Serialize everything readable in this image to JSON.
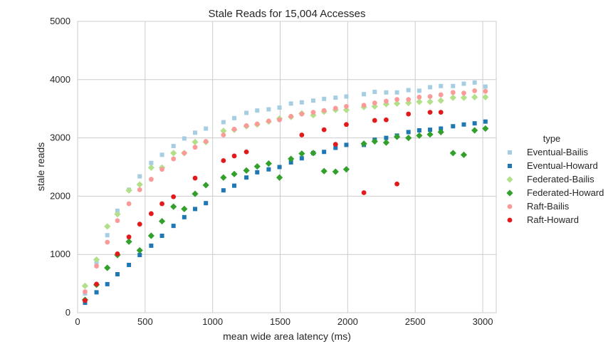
{
  "chart_data": {
    "type": "scatter",
    "title": "Stale Reads for 15,004 Accesses",
    "xlabel": "mean wide area latency (ms)",
    "ylabel": "stale reads",
    "xlim": [
      0,
      3100
    ],
    "ylim": [
      0,
      5000
    ],
    "x_ticks": [
      0,
      500,
      1000,
      1500,
      2000,
      2500,
      3000
    ],
    "y_ticks": [
      0,
      1000,
      2000,
      3000,
      4000,
      5000
    ],
    "grid": true,
    "legend_title": "type",
    "legend_placement": "right, outside plot",
    "series": [
      {
        "name": "Eventual-Bailis",
        "color": "#a6cee3",
        "marker": "square",
        "points": [
          [
            55,
            330
          ],
          [
            140,
            860
          ],
          [
            220,
            1330
          ],
          [
            295,
            1750
          ],
          [
            380,
            2110
          ],
          [
            460,
            2340
          ],
          [
            545,
            2570
          ],
          [
            625,
            2710
          ],
          [
            710,
            2860
          ],
          [
            790,
            2990
          ],
          [
            870,
            3090
          ],
          [
            950,
            3160
          ],
          [
            1080,
            3270
          ],
          [
            1160,
            3340
          ],
          [
            1250,
            3430
          ],
          [
            1330,
            3470
          ],
          [
            1415,
            3490
          ],
          [
            1495,
            3520
          ],
          [
            1580,
            3590
          ],
          [
            1660,
            3610
          ],
          [
            1745,
            3640
          ],
          [
            1825,
            3670
          ],
          [
            1910,
            3690
          ],
          [
            1990,
            3710
          ],
          [
            2120,
            3750
          ],
          [
            2200,
            3790
          ],
          [
            2285,
            3780
          ],
          [
            2365,
            3780
          ],
          [
            2450,
            3820
          ],
          [
            2530,
            3810
          ],
          [
            2610,
            3870
          ],
          [
            2690,
            3890
          ],
          [
            2780,
            3890
          ],
          [
            2860,
            3930
          ],
          [
            2940,
            3950
          ],
          [
            3020,
            3880
          ]
        ]
      },
      {
        "name": "Eventual-Howard",
        "color": "#1f78b4",
        "marker": "square",
        "points": [
          [
            55,
            170
          ],
          [
            140,
            350
          ],
          [
            220,
            490
          ],
          [
            295,
            660
          ],
          [
            380,
            820
          ],
          [
            460,
            990
          ],
          [
            545,
            1150
          ],
          [
            625,
            1320
          ],
          [
            710,
            1490
          ],
          [
            790,
            1640
          ],
          [
            870,
            1780
          ],
          [
            950,
            1880
          ],
          [
            1080,
            2100
          ],
          [
            1160,
            2180
          ],
          [
            1250,
            2320
          ],
          [
            1330,
            2410
          ],
          [
            1415,
            2460
          ],
          [
            1495,
            2500
          ],
          [
            1580,
            2580
          ],
          [
            1660,
            2650
          ],
          [
            1745,
            2740
          ],
          [
            1825,
            2760
          ],
          [
            1910,
            2830
          ],
          [
            1990,
            2880
          ],
          [
            2120,
            2880
          ],
          [
            2200,
            2970
          ],
          [
            2285,
            3000
          ],
          [
            2365,
            3040
          ],
          [
            2450,
            3100
          ],
          [
            2530,
            3130
          ],
          [
            2610,
            3140
          ],
          [
            2690,
            3160
          ],
          [
            2780,
            3200
          ],
          [
            2860,
            3230
          ],
          [
            2940,
            3250
          ],
          [
            3020,
            3280
          ]
        ]
      },
      {
        "name": "Federated-Bailis",
        "color": "#b2df8a",
        "marker": "diamond",
        "points": [
          [
            55,
            460
          ],
          [
            140,
            910
          ],
          [
            220,
            1480
          ],
          [
            295,
            1690
          ],
          [
            380,
            2100
          ],
          [
            460,
            2200
          ],
          [
            545,
            2490
          ],
          [
            625,
            2490
          ],
          [
            710,
            2740
          ],
          [
            790,
            2740
          ],
          [
            870,
            2930
          ],
          [
            950,
            2930
          ],
          [
            1080,
            3120
          ],
          [
            1160,
            3140
          ],
          [
            1250,
            3200
          ],
          [
            1330,
            3230
          ],
          [
            1415,
            3280
          ],
          [
            1495,
            3330
          ],
          [
            1580,
            3360
          ],
          [
            1660,
            3420
          ],
          [
            1745,
            3390
          ],
          [
            1825,
            3450
          ],
          [
            1910,
            3480
          ],
          [
            1990,
            3480
          ],
          [
            2120,
            3530
          ],
          [
            2200,
            3540
          ],
          [
            2285,
            3580
          ],
          [
            2365,
            3590
          ],
          [
            2450,
            3600
          ],
          [
            2530,
            3620
          ],
          [
            2610,
            3620
          ],
          [
            2690,
            3640
          ],
          [
            2780,
            3690
          ],
          [
            2860,
            3690
          ],
          [
            2940,
            3700
          ],
          [
            3020,
            3700
          ]
        ]
      },
      {
        "name": "Federated-Howard",
        "color": "#33a02c",
        "marker": "diamond",
        "points": [
          [
            55,
            220
          ],
          [
            140,
            480
          ],
          [
            220,
            770
          ],
          [
            295,
            990
          ],
          [
            380,
            1220
          ],
          [
            460,
            1070
          ],
          [
            545,
            1320
          ],
          [
            625,
            1570
          ],
          [
            710,
            1820
          ],
          [
            790,
            1780
          ],
          [
            870,
            2040
          ],
          [
            950,
            2190
          ],
          [
            1080,
            2320
          ],
          [
            1160,
            2380
          ],
          [
            1250,
            2440
          ],
          [
            1330,
            2510
          ],
          [
            1415,
            2560
          ],
          [
            1495,
            2320
          ],
          [
            1580,
            2640
          ],
          [
            1660,
            2730
          ],
          [
            1745,
            2740
          ],
          [
            1825,
            2430
          ],
          [
            1910,
            2420
          ],
          [
            1990,
            2460
          ],
          [
            2120,
            2900
          ],
          [
            2200,
            2940
          ],
          [
            2285,
            2920
          ],
          [
            2365,
            3020
          ],
          [
            2450,
            3000
          ],
          [
            2530,
            3040
          ],
          [
            2610,
            3060
          ],
          [
            2690,
            3100
          ],
          [
            2780,
            2740
          ],
          [
            2860,
            2710
          ],
          [
            2940,
            3130
          ],
          [
            3020,
            3160
          ]
        ]
      },
      {
        "name": "Raft-Bailis",
        "color": "#fb9a99",
        "marker": "circle",
        "points": [
          [
            55,
            360
          ],
          [
            140,
            800
          ],
          [
            220,
            1210
          ],
          [
            295,
            1580
          ],
          [
            380,
            1870
          ],
          [
            460,
            2110
          ],
          [
            545,
            2290
          ],
          [
            625,
            2460
          ],
          [
            710,
            2640
          ],
          [
            790,
            2740
          ],
          [
            870,
            2840
          ],
          [
            950,
            2940
          ],
          [
            1080,
            3050
          ],
          [
            1160,
            3150
          ],
          [
            1250,
            3210
          ],
          [
            1330,
            3240
          ],
          [
            1415,
            3290
          ],
          [
            1495,
            3310
          ],
          [
            1580,
            3370
          ],
          [
            1660,
            3410
          ],
          [
            1745,
            3440
          ],
          [
            1825,
            3470
          ],
          [
            1910,
            3510
          ],
          [
            1990,
            3540
          ],
          [
            2120,
            3560
          ],
          [
            2200,
            3600
          ],
          [
            2285,
            3630
          ],
          [
            2365,
            3660
          ],
          [
            2450,
            3660
          ],
          [
            2530,
            3700
          ],
          [
            2610,
            3710
          ],
          [
            2690,
            3740
          ],
          [
            2780,
            3780
          ],
          [
            2860,
            3770
          ],
          [
            2940,
            3810
          ],
          [
            3020,
            3800
          ]
        ]
      },
      {
        "name": "Raft-Howard",
        "color": "#e31a1c",
        "marker": "circle",
        "points": [
          [
            55,
            210
          ],
          [
            140,
            490
          ],
          [
            295,
            1010
          ],
          [
            380,
            1300
          ],
          [
            460,
            1520
          ],
          [
            545,
            1700
          ],
          [
            625,
            1870
          ],
          [
            710,
            1990
          ],
          [
            870,
            2310
          ],
          [
            1080,
            2610
          ],
          [
            1160,
            2690
          ],
          [
            1250,
            2760
          ],
          [
            1660,
            3050
          ],
          [
            1825,
            3140
          ],
          [
            1910,
            2890
          ],
          [
            1990,
            3230
          ],
          [
            2120,
            2060
          ],
          [
            2200,
            3300
          ],
          [
            2285,
            3310
          ],
          [
            2365,
            2210
          ],
          [
            2450,
            3410
          ],
          [
            2610,
            3440
          ],
          [
            2690,
            3440
          ]
        ]
      }
    ]
  }
}
